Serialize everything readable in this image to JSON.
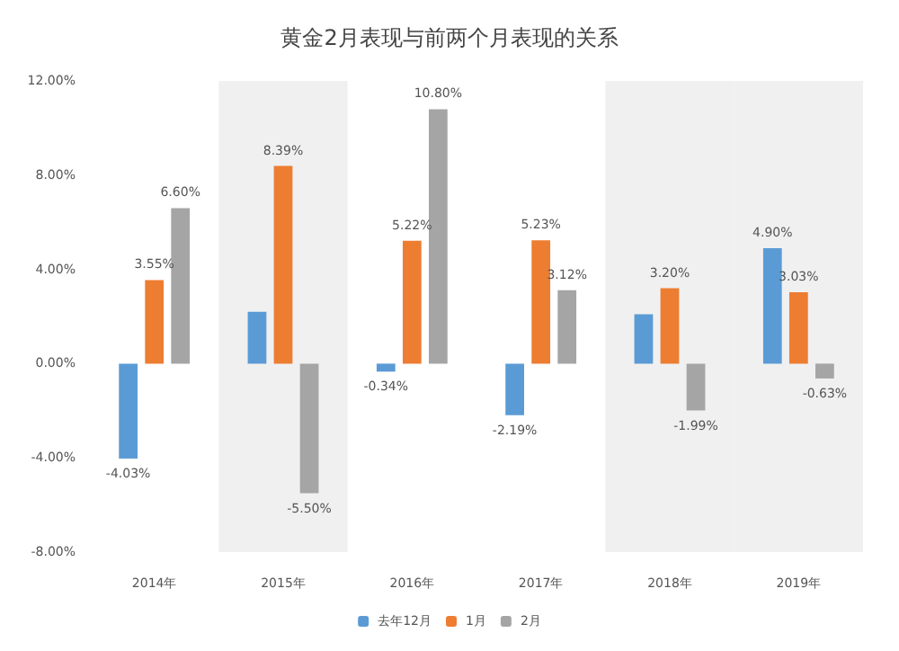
{
  "chart_data": {
    "type": "bar",
    "title": "黄金2月表现与前两个月表现的关系",
    "categories": [
      "2014年",
      "2015年",
      "2016年",
      "2017年",
      "2018年",
      "2019年"
    ],
    "series": [
      {
        "name": "去年12月",
        "color": "#5b9bd5",
        "values": [
          -4.03,
          2.2,
          -0.34,
          -2.19,
          2.1,
          4.9
        ],
        "value_labels": [
          "-4.03%",
          null,
          "-0.34%",
          "-2.19%",
          null,
          "4.90%"
        ]
      },
      {
        "name": "1月",
        "color": "#ed7d31",
        "values": [
          3.55,
          8.39,
          5.22,
          5.23,
          3.2,
          3.03
        ],
        "value_labels": [
          "3.55%",
          "8.39%",
          "5.22%",
          "5.23%",
          "3.20%",
          "3.03%"
        ]
      },
      {
        "name": "2月",
        "color": "#a5a5a5",
        "values": [
          6.6,
          -5.5,
          10.8,
          3.12,
          -1.99,
          -0.63
        ],
        "value_labels": [
          "6.60%",
          "-5.50%",
          "10.80%",
          "3.12%",
          "-1.99%",
          "-0.63%"
        ]
      }
    ],
    "ylim": [
      -8,
      12
    ],
    "yticks": [
      {
        "value": -8,
        "label": "-8.00%"
      },
      {
        "value": -4,
        "label": "-4.00%"
      },
      {
        "value": 0,
        "label": "0.00%"
      },
      {
        "value": 4,
        "label": "4.00%"
      },
      {
        "value": 8,
        "label": "8.00%"
      },
      {
        "value": 12,
        "label": "12.00%"
      }
    ],
    "bands": [
      {
        "axis": "x",
        "from": "2015年",
        "to": "2015年",
        "color": "#f0f0f0"
      },
      {
        "axis": "x",
        "from": "2018年",
        "to": "2018年",
        "color": "#f0f0f0"
      },
      {
        "axis": "x",
        "from": "2019年",
        "to": "2019年",
        "color": "#f0f0f0"
      }
    ],
    "grid": false,
    "legend": "bottom"
  }
}
